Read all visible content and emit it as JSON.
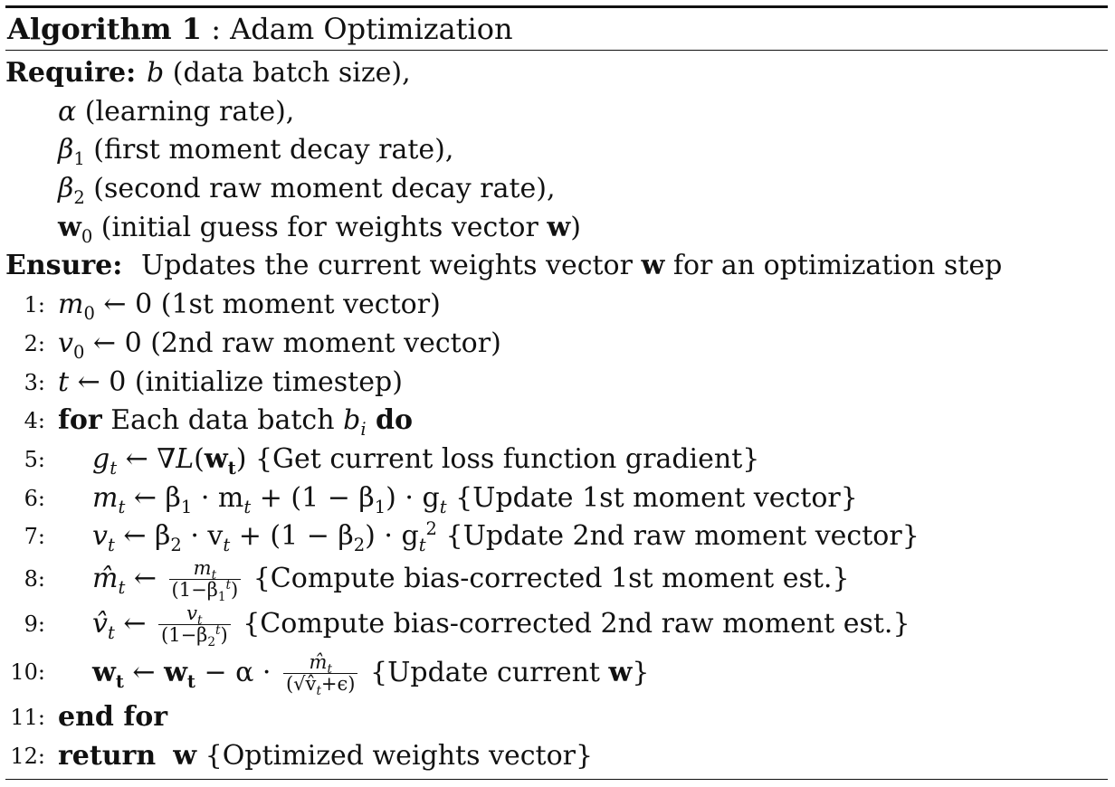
{
  "caption": {
    "label": "Algorithm 1",
    "sep": " : ",
    "title": "Adam Optimization"
  },
  "require": {
    "label": "Require:",
    "items": [
      {
        "sym": "b",
        "text": " (data batch size),"
      },
      {
        "sym": "α",
        "text": " (learning rate),"
      },
      {
        "sym": "β",
        "sub": "1",
        "text": " (first moment decay rate),"
      },
      {
        "sym": "β",
        "sub": "2",
        "text": " (second raw moment decay rate),"
      },
      {
        "sym": "w",
        "sub": "0",
        "text": " (initial guess for weights vector ",
        "bold_tail": "w",
        "tail": ")"
      }
    ]
  },
  "ensure": {
    "label": "Ensure:",
    "text_a": "Updates the current weights vector ",
    "bold": "w",
    "text_b": " for an optimization step"
  },
  "lines": [
    {
      "n": "1:",
      "a": "m",
      "sub": "0",
      "b": " ← 0 (1st moment vector)"
    },
    {
      "n": "2:",
      "a": "v",
      "sub": "0",
      "b": " ← 0 (2nd raw moment vector)"
    },
    {
      "n": "3:",
      "a": "t",
      "b": " ← 0 (initialize timestep)"
    },
    {
      "n": "4:",
      "kw": "for",
      "a": " Each data batch ",
      "var": "b",
      "sub": "i",
      "kw2": " do"
    },
    {
      "n": "5:",
      "a": "g",
      "sub": "t",
      "b": " ← ∇",
      "c": "L",
      "d": "(",
      "e": "w",
      "esub": "t",
      "f": ") {Get current loss function gradient}"
    },
    {
      "n": "6:",
      "a": "m",
      "sub": "t",
      "b": " ← β",
      "bsub": "1",
      "c": " · m",
      "csub": "t",
      "d": " + (1 − β",
      "dsub": "1",
      "e": ") · g",
      "esub": "t",
      "f": " {Update 1st moment vector}"
    },
    {
      "n": "7:",
      "a": "v",
      "sub": "t",
      "b": " ← β",
      "bsub": "2",
      "c": " · v",
      "csub": "t",
      "d": " + (1 − β",
      "dsub": "2",
      "e": ") · g",
      "esub": "t",
      "esup": "2",
      "f": " {Update 2nd raw moment vector}"
    },
    {
      "n": "8:",
      "a": "m̂",
      "sub": "t",
      "b": " ← ",
      "frac_num": "m",
      "frac_num_sub": "t",
      "frac_den": "(1−β",
      "frac_den_sub": "1",
      "frac_den_sup": "t",
      "frac_den_tail": ")",
      "f": " {Compute bias-corrected 1st moment est.}"
    },
    {
      "n": "9:",
      "a": "v̂",
      "sub": "t",
      "b": " ← ",
      "frac_num": "v",
      "frac_num_sub": "t",
      "frac_den": "(1−β",
      "frac_den_sub": "2",
      "frac_den_sup": "t",
      "frac_den_tail": ")",
      "f": " {Compute bias-corrected 2nd raw moment est.}"
    },
    {
      "n": "10:",
      "a": "w",
      "sub": "t",
      "b": " ← ",
      "c": "w",
      "csub": "t",
      "d": " − α · ",
      "frac_num": "m̂",
      "frac_num_sub": "t",
      "frac_den": "(√v̂",
      "frac_den_sub": "t",
      "frac_den_tail": "+ϵ)",
      "f": " {Update current ",
      "g": "w",
      "h": "}"
    },
    {
      "n": "11:",
      "kw": "end for"
    },
    {
      "n": "12:",
      "kw": "return",
      "a": "  ",
      "bold": "w",
      "f": " {Optimized weights vector}"
    }
  ]
}
